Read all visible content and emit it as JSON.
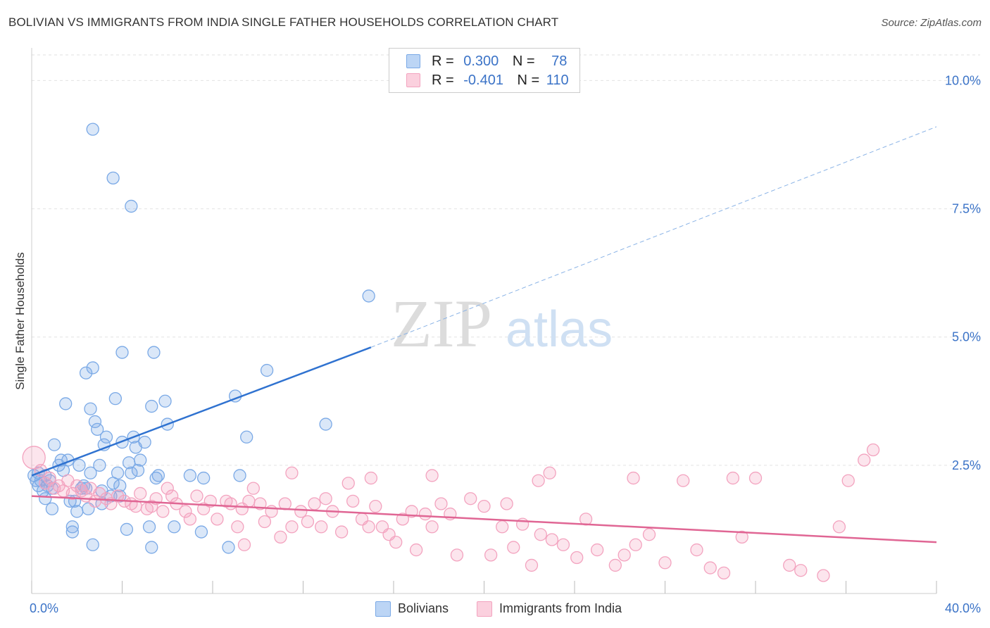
{
  "header": {
    "title": "BOLIVIAN VS IMMIGRANTS FROM INDIA SINGLE FATHER HOUSEHOLDS CORRELATION CHART",
    "source": "Source: ZipAtlas.com"
  },
  "watermark": {
    "zip": "ZIP",
    "atlas": "atlas"
  },
  "stats_legend": [
    {
      "r_label": "R =",
      "r_value": "0.300",
      "n_label": "N =",
      "n_value": "78",
      "color": "#a8c8f0"
    },
    {
      "r_label": "R =",
      "r_value": "-0.401",
      "n_label": "N =",
      "n_value": "110",
      "color": "#f6b8cc"
    }
  ],
  "chart_data": {
    "type": "scatter",
    "title": "BOLIVIAN VS IMMIGRANTS FROM INDIA SINGLE FATHER HOUSEHOLDS CORRELATION CHART",
    "xlabel": "",
    "ylabel": "Single Father Households",
    "xlim": [
      0,
      40
    ],
    "ylim": [
      0,
      10.5
    ],
    "x_tick_labels": [
      "0.0%",
      "40.0%"
    ],
    "y_ticks": [
      2.5,
      5.0,
      7.5,
      10.0
    ],
    "y_tick_labels": [
      "2.5%",
      "5.0%",
      "7.5%",
      "10.0%"
    ],
    "grid": true,
    "legend_position": "bottom-center",
    "series": [
      {
        "name": "Bolivians",
        "color": "#7aa9e6",
        "line_color": "#2f72d0",
        "trend": {
          "x0": 0,
          "y0": 2.3,
          "x1": 15,
          "y1": 4.8,
          "x_dash_end": 40,
          "y_dash_end": 9.1
        },
        "points": [
          [
            0.1,
            2.3
          ],
          [
            0.2,
            2.2
          ],
          [
            0.3,
            2.1
          ],
          [
            0.3,
            2.35
          ],
          [
            0.4,
            2.2
          ],
          [
            0.5,
            2.0
          ],
          [
            0.6,
            2.3
          ],
          [
            0.7,
            2.1
          ],
          [
            0.8,
            2.2
          ],
          [
            0.9,
            2.05
          ],
          [
            0.6,
            1.85
          ],
          [
            0.9,
            1.65
          ],
          [
            1.0,
            2.9
          ],
          [
            1.2,
            2.5
          ],
          [
            1.3,
            2.6
          ],
          [
            1.4,
            2.4
          ],
          [
            1.5,
            3.7
          ],
          [
            1.6,
            2.6
          ],
          [
            1.7,
            1.8
          ],
          [
            1.8,
            1.3
          ],
          [
            1.8,
            1.2
          ],
          [
            1.9,
            1.8
          ],
          [
            2.0,
            1.6
          ],
          [
            2.1,
            2.5
          ],
          [
            2.2,
            2.05
          ],
          [
            2.3,
            2.1
          ],
          [
            2.4,
            2.05
          ],
          [
            2.4,
            4.3
          ],
          [
            2.5,
            1.65
          ],
          [
            2.6,
            2.35
          ],
          [
            2.6,
            3.6
          ],
          [
            2.7,
            4.4
          ],
          [
            2.8,
            3.35
          ],
          [
            2.9,
            3.2
          ],
          [
            3.0,
            2.5
          ],
          [
            3.1,
            2.0
          ],
          [
            3.1,
            1.75
          ],
          [
            3.2,
            2.9
          ],
          [
            3.3,
            3.05
          ],
          [
            3.5,
            1.9
          ],
          [
            3.6,
            2.15
          ],
          [
            3.7,
            3.8
          ],
          [
            3.8,
            2.35
          ],
          [
            3.9,
            2.1
          ],
          [
            3.9,
            1.9
          ],
          [
            4.0,
            2.95
          ],
          [
            4.0,
            4.7
          ],
          [
            4.2,
            1.25
          ],
          [
            4.3,
            2.55
          ],
          [
            4.4,
            2.35
          ],
          [
            4.5,
            3.05
          ],
          [
            4.6,
            2.85
          ],
          [
            4.7,
            2.4
          ],
          [
            4.8,
            2.6
          ],
          [
            5.0,
            2.95
          ],
          [
            5.2,
            1.3
          ],
          [
            5.3,
            3.65
          ],
          [
            5.4,
            4.7
          ],
          [
            5.5,
            2.25
          ],
          [
            5.6,
            2.3
          ],
          [
            5.9,
            3.75
          ],
          [
            6.0,
            3.3
          ],
          [
            6.3,
            1.3
          ],
          [
            7.0,
            2.3
          ],
          [
            7.5,
            1.2
          ],
          [
            7.6,
            2.25
          ],
          [
            2.7,
            0.95
          ],
          [
            5.3,
            0.9
          ],
          [
            8.7,
            0.9
          ],
          [
            9.0,
            3.85
          ],
          [
            9.2,
            2.3
          ],
          [
            9.5,
            3.05
          ],
          [
            10.4,
            4.35
          ],
          [
            13.0,
            3.3
          ],
          [
            14.9,
            5.8
          ],
          [
            2.7,
            9.05
          ],
          [
            3.6,
            8.1
          ],
          [
            4.4,
            7.55
          ]
        ]
      },
      {
        "name": "Immigrants from India",
        "color": "#f3a3bf",
        "line_color": "#e06694",
        "trend": {
          "x0": 0,
          "y0": 1.9,
          "x1": 40,
          "y1": 1.0
        },
        "points": [
          [
            0.1,
            2.65
          ],
          [
            0.4,
            2.4
          ],
          [
            0.6,
            2.15
          ],
          [
            0.8,
            2.25
          ],
          [
            1.0,
            2.05
          ],
          [
            1.2,
            2.1
          ],
          [
            1.4,
            2.0
          ],
          [
            1.6,
            2.2
          ],
          [
            1.8,
            1.95
          ],
          [
            2.0,
            2.1
          ],
          [
            2.2,
            2.0
          ],
          [
            2.4,
            1.9
          ],
          [
            2.6,
            2.05
          ],
          [
            2.8,
            1.8
          ],
          [
            3.0,
            1.95
          ],
          [
            3.3,
            1.85
          ],
          [
            3.5,
            1.75
          ],
          [
            3.8,
            1.9
          ],
          [
            4.1,
            1.8
          ],
          [
            4.4,
            1.75
          ],
          [
            4.6,
            1.7
          ],
          [
            4.8,
            1.95
          ],
          [
            5.1,
            1.65
          ],
          [
            5.3,
            1.7
          ],
          [
            5.5,
            1.85
          ],
          [
            5.8,
            1.6
          ],
          [
            6.0,
            2.05
          ],
          [
            6.2,
            1.9
          ],
          [
            6.4,
            1.75
          ],
          [
            6.8,
            1.6
          ],
          [
            7.0,
            1.45
          ],
          [
            7.3,
            1.9
          ],
          [
            7.6,
            1.65
          ],
          [
            7.9,
            1.8
          ],
          [
            8.2,
            1.45
          ],
          [
            8.6,
            1.8
          ],
          [
            8.8,
            1.75
          ],
          [
            9.1,
            1.3
          ],
          [
            9.3,
            1.65
          ],
          [
            9.6,
            1.8
          ],
          [
            9.8,
            2.05
          ],
          [
            10.1,
            1.75
          ],
          [
            10.3,
            1.4
          ],
          [
            10.6,
            1.6
          ],
          [
            11.0,
            1.1
          ],
          [
            11.2,
            1.75
          ],
          [
            11.5,
            1.3
          ],
          [
            11.9,
            1.6
          ],
          [
            12.2,
            1.4
          ],
          [
            12.5,
            1.75
          ],
          [
            12.8,
            1.3
          ],
          [
            13.0,
            1.85
          ],
          [
            13.3,
            1.6
          ],
          [
            13.7,
            1.2
          ],
          [
            14.0,
            2.15
          ],
          [
            14.2,
            1.8
          ],
          [
            14.6,
            1.45
          ],
          [
            14.9,
            1.3
          ],
          [
            15.2,
            1.7
          ],
          [
            15.5,
            1.3
          ],
          [
            15.8,
            1.15
          ],
          [
            16.1,
            1.0
          ],
          [
            16.4,
            1.45
          ],
          [
            16.8,
            1.6
          ],
          [
            17.0,
            0.85
          ],
          [
            17.4,
            1.55
          ],
          [
            17.7,
            1.3
          ],
          [
            18.1,
            1.75
          ],
          [
            18.5,
            1.55
          ],
          [
            18.8,
            0.75
          ],
          [
            19.4,
            1.85
          ],
          [
            20.0,
            1.7
          ],
          [
            20.3,
            0.75
          ],
          [
            20.8,
            1.3
          ],
          [
            21.3,
            0.9
          ],
          [
            21.7,
            1.35
          ],
          [
            22.1,
            0.55
          ],
          [
            22.5,
            1.15
          ],
          [
            23.0,
            1.05
          ],
          [
            23.5,
            0.95
          ],
          [
            24.1,
            0.7
          ],
          [
            24.5,
            1.45
          ],
          [
            25.0,
            0.85
          ],
          [
            25.8,
            0.55
          ],
          [
            26.2,
            0.75
          ],
          [
            26.7,
            0.95
          ],
          [
            27.3,
            1.15
          ],
          [
            28.0,
            0.6
          ],
          [
            28.8,
            2.2
          ],
          [
            29.4,
            0.85
          ],
          [
            30.0,
            0.5
          ],
          [
            30.6,
            0.4
          ],
          [
            31.4,
            1.1
          ],
          [
            32.0,
            2.25
          ],
          [
            33.5,
            0.55
          ],
          [
            34.0,
            0.45
          ],
          [
            35.0,
            0.35
          ],
          [
            35.7,
            1.3
          ],
          [
            36.1,
            2.2
          ],
          [
            36.8,
            2.6
          ],
          [
            37.2,
            2.8
          ],
          [
            11.5,
            2.35
          ],
          [
            15.0,
            2.25
          ],
          [
            17.7,
            2.3
          ],
          [
            21.0,
            1.75
          ],
          [
            22.4,
            2.2
          ],
          [
            22.9,
            2.35
          ],
          [
            26.6,
            2.25
          ],
          [
            31.0,
            2.25
          ],
          [
            9.4,
            0.95
          ]
        ]
      }
    ]
  }
}
